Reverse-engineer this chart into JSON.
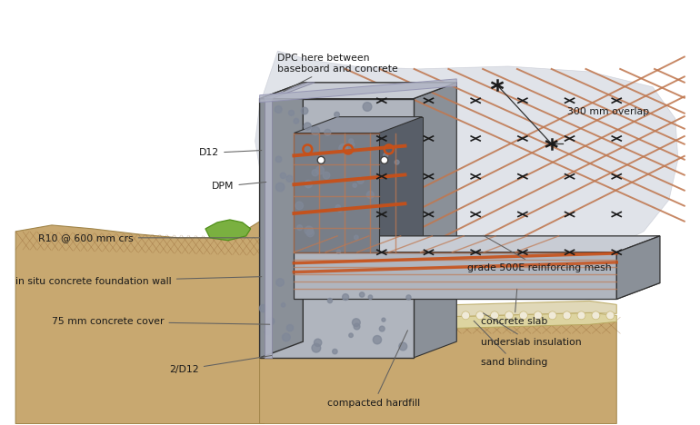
{
  "bg_color": "#ffffff",
  "colors": {
    "concrete_face": "#b0b5be",
    "concrete_side": "#8a9098",
    "concrete_top": "#c8ccd4",
    "concrete_inner": "#787e88",
    "concrete_inner_top": "#9298a5",
    "soil": "#c8a870",
    "soil_dark": "#a08448",
    "soil_hatch": "#906030",
    "grass": "#7ab040",
    "rebar_orange": "#c85018",
    "rebar_mesh": "#c07850",
    "dpm_gray": "#b0b4c4",
    "insulation": "#e0d8b8",
    "shadow_blob": "#c8ccd8",
    "outline": "#303030",
    "text": "#1a1a1a",
    "arrow": "#606060",
    "slab_face": "#a0a8b0",
    "slab_side": "#787e88",
    "agg_dot": "#808898"
  },
  "labels": {
    "dpc_between": "DPC here between\nbaseboard and concrete",
    "dpm": "DPM",
    "d12": "D12",
    "r10": "R10 @ 600 mm crs",
    "in_situ": "in situ concrete foundation wall",
    "cover": "75 mm concrete cover",
    "two_d12": "2/D12",
    "compacted": "compacted hardfill",
    "sand": "sand blinding",
    "underslab": "underslab insulation",
    "concrete_slab": "concrete slab",
    "grade500e": "grade 500E reinforcing mesh",
    "overlap": "300 mm overlap"
  },
  "figsize": [
    7.7,
    4.68
  ],
  "dpi": 100
}
